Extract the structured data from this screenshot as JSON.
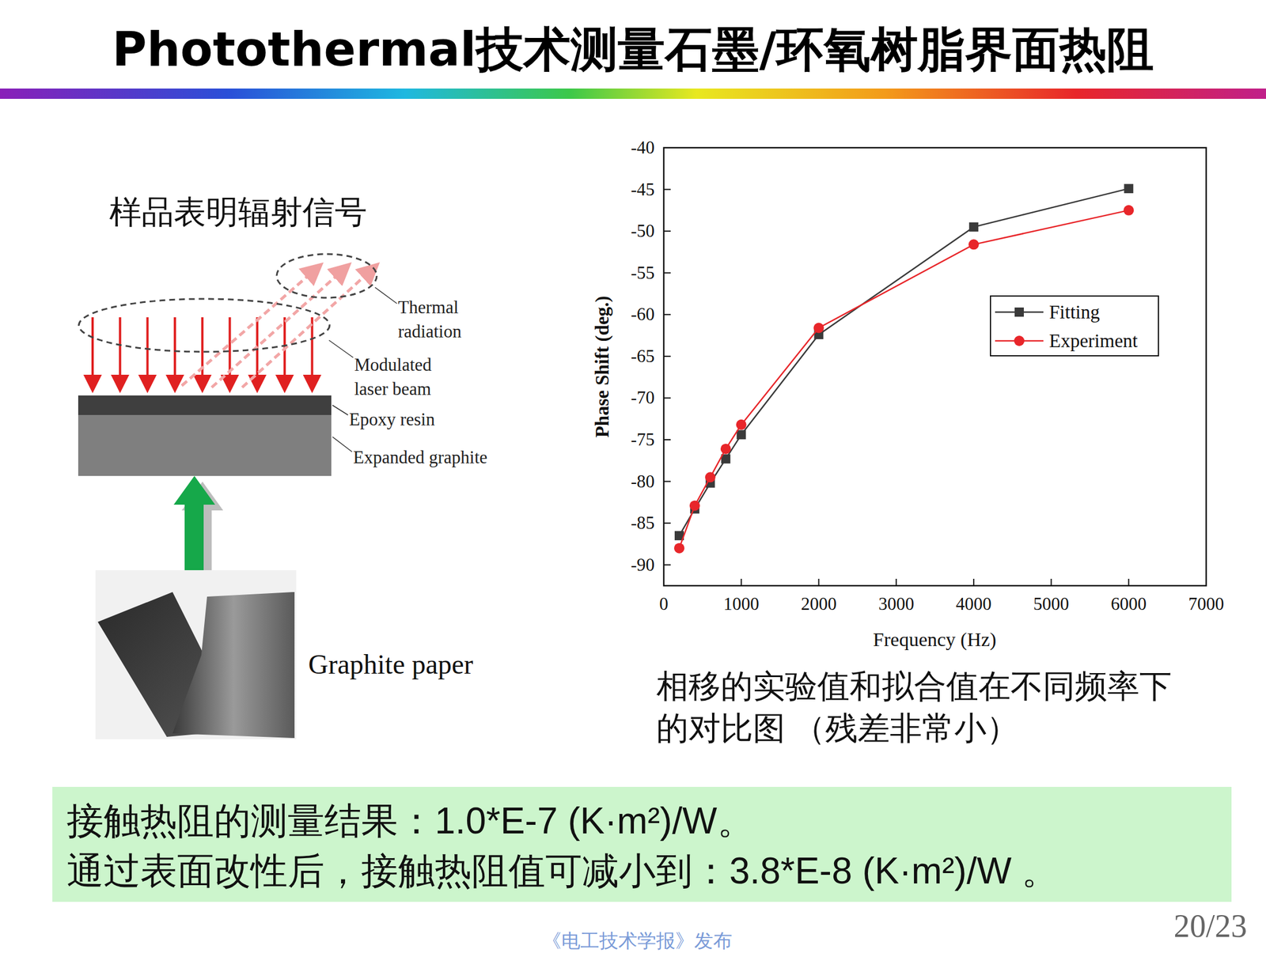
{
  "slide": {
    "title": "Photothermal技术测量石墨/环氧树脂界面热阻",
    "left_heading": "样品表明辐射信号",
    "diagram": {
      "thermal_radiation": [
        "Thermal",
        "radiation"
      ],
      "laser_beam": [
        "Modulated",
        "laser beam"
      ],
      "epoxy": "Epoxy resin",
      "graphite": "Expanded graphite"
    },
    "photo_label": "Graphite paper",
    "caption": [
      "相移的实验值和拟合值在不同频率下",
      "的对比图 （残差非常小）"
    ],
    "results": [
      "接触热阻的测量结果：1.0*E-7 (K·m²)/W。",
      "通过表面改性后，接触热阻值可减小到：3.8*E-8 (K·m²)/W 。"
    ],
    "footer": "《电工技术学报》发布",
    "page": "20/23"
  },
  "chart_data": {
    "type": "line",
    "x_label": "Frequency (Hz)",
    "y_label": "Phase Shift (deg.)",
    "x": [
      200,
      400,
      600,
      800,
      1000,
      2000,
      4000,
      6000
    ],
    "series": [
      {
        "name": "Fitting",
        "color": "#3a3a3a",
        "marker": "square",
        "line_style": "solid",
        "values": [
          -86.5,
          -83.3,
          -80.2,
          -77.3,
          -74.4,
          -62.4,
          -49.5,
          -44.9
        ]
      },
      {
        "name": "Experiment",
        "color": "#e8262a",
        "marker": "circle",
        "line_style": "solid",
        "values": [
          -88.0,
          -82.9,
          -79.5,
          -76.1,
          -73.2,
          -61.6,
          -51.6,
          -47.5
        ]
      }
    ],
    "xlim": [
      0,
      7000
    ],
    "xticks": [
      0,
      1000,
      2000,
      3000,
      4000,
      5000,
      6000,
      7000
    ],
    "ylim": [
      -92.5,
      -40
    ],
    "yticks": [
      -90,
      -85,
      -80,
      -75,
      -70,
      -65,
      -60,
      -55,
      -50,
      -45,
      -40
    ],
    "grid": false,
    "legend": "right"
  }
}
